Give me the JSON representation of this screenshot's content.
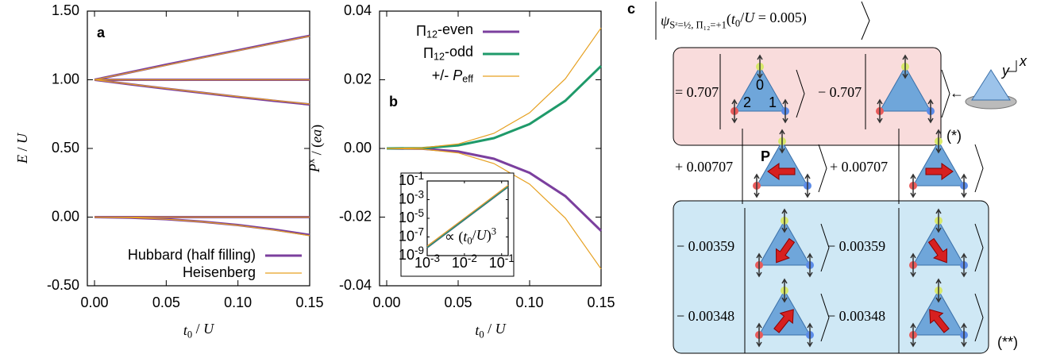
{
  "chart_data": [
    {
      "type": "line",
      "label": "a",
      "x": [
        0,
        0.025,
        0.05,
        0.075,
        0.1,
        0.125,
        0.15
      ],
      "series": [
        {
          "name": [
            {
              "text": "Hubbard (half filling)"
            }
          ],
          "color": "#7b3f9e",
          "width": 3,
          "curves": [
            [
              1,
              1.055,
              1.11,
              1.163,
              1.215,
              1.268,
              1.32
            ],
            [
              1,
              1,
              1,
              1,
              1,
              1,
              1
            ],
            [
              1,
              0.967,
              0.935,
              0.905,
              0.875,
              0.847,
              0.82
            ],
            [
              0,
              0,
              0,
              0,
              0,
              0,
              0
            ],
            [
              0,
              -0.004,
              -0.015,
              -0.033,
              -0.058,
              -0.09,
              -0.13
            ]
          ]
        },
        {
          "name": [
            {
              "text": "Heisenberg"
            }
          ],
          "color": "#e6a020",
          "width": 1.2,
          "curves": [
            [
              1,
              1.053,
              1.106,
              1.16,
              1.212,
              1.265,
              1.318
            ],
            [
              1,
              1,
              1,
              1,
              1,
              1,
              1
            ],
            [
              1,
              0.968,
              0.937,
              0.907,
              0.878,
              0.85,
              0.823
            ],
            [
              0,
              0,
              0,
              0,
              0,
              0,
              0
            ],
            [
              0,
              -0.004,
              -0.015,
              -0.034,
              -0.06,
              -0.094,
              -0.135
            ]
          ]
        }
      ],
      "xlim": [
        -0.005,
        0.15
      ],
      "xticks": [
        {
          "value": 0,
          "label": "0.00"
        },
        {
          "value": 0.05,
          "label": "0.05"
        },
        {
          "value": 0.1,
          "label": "0.10"
        },
        {
          "value": 0.15,
          "label": "0.15"
        }
      ],
      "ylim": [
        -0.5,
        1.5
      ],
      "yticks": [
        {
          "value": 1.5,
          "label": "1.50"
        },
        {
          "value": 1,
          "label": "1.00"
        },
        {
          "value": 0.5,
          "label": "0.50"
        },
        {
          "value": 0,
          "label": "0.00"
        },
        {
          "value": -0.5,
          "label": "-0.50"
        }
      ],
      "xlabel": [
        {
          "text": "t",
          "style": "italic"
        },
        {
          "text": "0",
          "style": "sub"
        },
        {
          "text": " / "
        },
        {
          "text": "U",
          "style": "italic"
        }
      ],
      "ylabel": [
        {
          "text": "E",
          "style": "italic"
        },
        {
          "text": " / "
        },
        {
          "text": "U",
          "style": "italic"
        }
      ],
      "legend": "lower right"
    },
    {
      "type": "line",
      "label": "b",
      "x": [
        0,
        0.025,
        0.05,
        0.075,
        0.1,
        0.125,
        0.15
      ],
      "series": [
        {
          "name": [
            {
              "text": "Π"
            },
            {
              "text": "12",
              "style": "sub"
            },
            {
              "text": "-even"
            }
          ],
          "color": "#7b3f9e",
          "width": 3,
          "curves": [
            [
              0,
              -0.0001,
              -0.0009,
              -0.003,
              -0.0071,
              -0.0139,
              -0.024
            ]
          ]
        },
        {
          "name": [
            {
              "text": "Π"
            },
            {
              "text": "12",
              "style": "sub"
            },
            {
              "text": "-odd"
            }
          ],
          "color": "#1f9a6a",
          "width": 3,
          "curves": [
            [
              0,
              0.0001,
              0.0009,
              0.003,
              0.0071,
              0.0139,
              0.024
            ]
          ]
        },
        {
          "name": [
            {
              "text": "+/- "
            },
            {
              "text": "P",
              "style": "italic"
            },
            {
              "text": "eff",
              "style": "sub"
            }
          ],
          "color": "#e6a020",
          "width": 1.2,
          "curves": [
            [
              0,
              0.0002,
              0.0013,
              0.0044,
              0.0104,
              0.0203,
              0.0351
            ],
            [
              0,
              -0.0002,
              -0.0013,
              -0.0044,
              -0.0104,
              -0.0203,
              -0.0351
            ]
          ]
        }
      ],
      "xlim": [
        -0.005,
        0.15
      ],
      "xticks": [
        {
          "value": 0,
          "label": "0.00"
        },
        {
          "value": 0.05,
          "label": "0.05"
        },
        {
          "value": 0.1,
          "label": "0.10"
        },
        {
          "value": 0.15,
          "label": "0.15"
        }
      ],
      "ylim": [
        -0.04,
        0.04
      ],
      "yticks": [
        {
          "value": 0.04,
          "label": "0.04"
        },
        {
          "value": 0.02,
          "label": "0.02"
        },
        {
          "value": 0,
          "label": "0.00"
        },
        {
          "value": -0.02,
          "label": "-0.02"
        },
        {
          "value": -0.04,
          "label": "-0.04"
        }
      ],
      "xlabel": [
        {
          "text": "t",
          "style": "italic"
        },
        {
          "text": "0",
          "style": "sub"
        },
        {
          "text": " / "
        },
        {
          "text": "U",
          "style": "italic"
        }
      ],
      "ylabel": [
        {
          "text": "P",
          "style": "italic"
        },
        {
          "text": "x",
          "style": "sup"
        },
        {
          "text": " / ("
        },
        {
          "text": "ea",
          "style": "italic"
        },
        {
          "text": ")"
        }
      ],
      "legend": "upper left"
    },
    {
      "type": "line",
      "log_x": true,
      "log_y": true,
      "x": [
        0.001,
        0.01,
        0.1,
        0.15
      ],
      "series": [
        {
          "color": "#e6a020",
          "width": 1.2,
          "curves": [
            [
              1.04e-08,
              1.04e-05,
              0.0104,
              0.0351
            ]
          ]
        },
        {
          "color": "#7b3f9e",
          "width": 2,
          "curves": [
            [
              7.1e-09,
              7.1e-06,
              0.0071,
              0.024
            ]
          ]
        },
        {
          "color": "#1f9a6a",
          "width": 1.4,
          "curves": [
            [
              7.1e-09,
              7.1e-06,
              0.0071,
              0.024
            ]
          ]
        }
      ],
      "xlim": [
        0.001,
        0.15
      ],
      "xticks": [
        {
          "value": 0.001,
          "label": "10",
          "exponent": "-3"
        },
        {
          "value": 0.01,
          "label": "10",
          "exponent": "-2"
        },
        {
          "value": 0.1,
          "label": "10",
          "exponent": "-1"
        }
      ],
      "ylim": [
        1e-09,
        0.1
      ],
      "yticks": [
        {
          "value": 0.1,
          "label": "10",
          "exponent": "-1"
        },
        {
          "value": 0.001,
          "label": "10",
          "exponent": "-3"
        },
        {
          "value": 1e-05,
          "label": "10",
          "exponent": "-5"
        },
        {
          "value": 1e-07,
          "label": "10",
          "exponent": "-7"
        },
        {
          "value": 1e-09,
          "label": "10",
          "exponent": "-9"
        }
      ],
      "annotation": [
        {
          "text": "∝ ("
        },
        {
          "text": "t",
          "style": "italic"
        },
        {
          "text": "0",
          "style": "sub"
        },
        {
          "text": "/"
        },
        {
          "text": "U",
          "style": "italic"
        },
        {
          "text": ")"
        },
        {
          "text": "3",
          "style": "sup"
        }
      ]
    }
  ],
  "panel_c": {
    "label": "c",
    "state": [
      {
        "text": "ψ",
        "style": "italic"
      },
      {
        "text": "Sᶻ=½, Π₁₂=+1",
        "style": "sub"
      },
      {
        "text": "("
      },
      {
        "text": "t",
        "style": "italic"
      },
      {
        "text": "0",
        "style": "sub"
      },
      {
        "text": "/"
      },
      {
        "text": "U",
        "style": "italic"
      },
      {
        "text": " = 0.005)"
      }
    ],
    "rows": [
      [
        "= 0.707",
        "− 0.707"
      ],
      [
        "+ 0.00707",
        "+ 0.00707"
      ],
      [
        "− 0.00359",
        "− 0.00359"
      ],
      [
        "− 0.00348",
        "− 0.00348"
      ]
    ],
    "site_labels": [
      "0",
      "2",
      "1"
    ],
    "polarization": "P",
    "axes": [
      "x",
      "y"
    ],
    "notes": [
      "(*)",
      "(**)"
    ]
  }
}
